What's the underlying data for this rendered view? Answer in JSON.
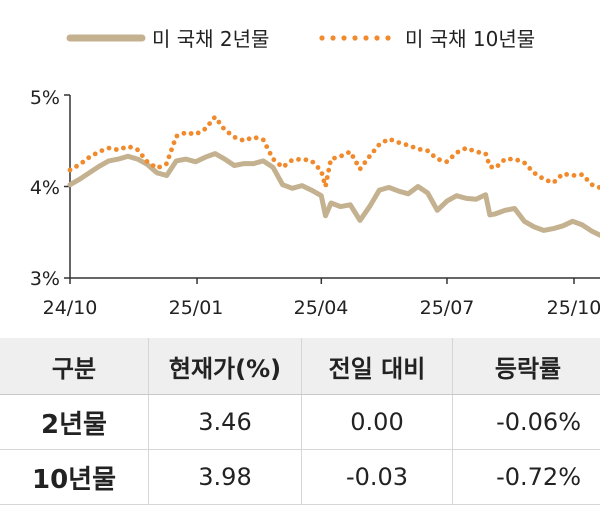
{
  "chart_data": {
    "type": "line",
    "title": "",
    "xlabel": "",
    "ylabel": "",
    "ylim": [
      3,
      5
    ],
    "y_ticks": [
      "3%",
      "4%",
      "5%"
    ],
    "x_ticks": [
      "24/10",
      "25/01",
      "25/04",
      "25/07",
      "25/10"
    ],
    "legend_position": "top",
    "series": [
      {
        "name": "미 국채 2년물",
        "style": "solid",
        "color": "#c4b190",
        "x": [
          "2024-10-01",
          "2024-10-08",
          "2024-10-15",
          "2024-10-22",
          "2024-10-29",
          "2024-11-05",
          "2024-11-12",
          "2024-11-19",
          "2024-11-26",
          "2024-12-03",
          "2024-12-10",
          "2024-12-17",
          "2024-12-24",
          "2024-12-31",
          "2025-01-07",
          "2025-01-14",
          "2025-01-21",
          "2025-01-28",
          "2025-02-04",
          "2025-02-11",
          "2025-02-18",
          "2025-02-25",
          "2025-03-04",
          "2025-03-11",
          "2025-03-18",
          "2025-03-25",
          "2025-04-01",
          "2025-04-04",
          "2025-04-08",
          "2025-04-15",
          "2025-04-22",
          "2025-04-29",
          "2025-05-06",
          "2025-05-13",
          "2025-05-20",
          "2025-05-27",
          "2025-06-03",
          "2025-06-10",
          "2025-06-17",
          "2025-06-24",
          "2025-07-01",
          "2025-07-08",
          "2025-07-15",
          "2025-07-22",
          "2025-07-29",
          "2025-08-01",
          "2025-08-05",
          "2025-08-12",
          "2025-08-19",
          "2025-08-26",
          "2025-09-02",
          "2025-09-09",
          "2025-09-16",
          "2025-09-23",
          "2025-09-30",
          "2025-10-07",
          "2025-10-14",
          "2025-10-21"
        ],
        "values": [
          4.02,
          4.08,
          4.15,
          4.22,
          4.28,
          4.3,
          4.33,
          4.3,
          4.24,
          4.15,
          4.12,
          4.28,
          4.3,
          4.27,
          4.32,
          4.36,
          4.3,
          4.23,
          4.25,
          4.25,
          4.28,
          4.21,
          4.02,
          3.98,
          4.01,
          3.96,
          3.9,
          3.68,
          3.82,
          3.78,
          3.8,
          3.63,
          3.78,
          3.96,
          3.99,
          3.95,
          3.92,
          4.0,
          3.93,
          3.74,
          3.84,
          3.9,
          3.87,
          3.86,
          3.91,
          3.69,
          3.7,
          3.74,
          3.76,
          3.62,
          3.56,
          3.52,
          3.54,
          3.57,
          3.62,
          3.58,
          3.51,
          3.46
        ]
      },
      {
        "name": "미 국채 10년물",
        "style": "dotted",
        "color": "#f08a2c",
        "x": [
          "2024-10-01",
          "2024-10-08",
          "2024-10-15",
          "2024-10-22",
          "2024-10-29",
          "2024-11-05",
          "2024-11-12",
          "2024-11-19",
          "2024-11-26",
          "2024-12-03",
          "2024-12-10",
          "2024-12-17",
          "2024-12-24",
          "2024-12-31",
          "2025-01-07",
          "2025-01-14",
          "2025-01-21",
          "2025-01-28",
          "2025-02-04",
          "2025-02-11",
          "2025-02-18",
          "2025-02-25",
          "2025-03-04",
          "2025-03-11",
          "2025-03-18",
          "2025-03-25",
          "2025-04-01",
          "2025-04-04",
          "2025-04-08",
          "2025-04-15",
          "2025-04-22",
          "2025-04-29",
          "2025-05-06",
          "2025-05-13",
          "2025-05-20",
          "2025-05-27",
          "2025-06-03",
          "2025-06-10",
          "2025-06-17",
          "2025-06-24",
          "2025-07-01",
          "2025-07-08",
          "2025-07-15",
          "2025-07-22",
          "2025-07-29",
          "2025-08-01",
          "2025-08-05",
          "2025-08-12",
          "2025-08-19",
          "2025-08-26",
          "2025-09-02",
          "2025-09-09",
          "2025-09-16",
          "2025-09-23",
          "2025-09-30",
          "2025-10-07",
          "2025-10-14",
          "2025-10-21"
        ],
        "values": [
          4.18,
          4.24,
          4.32,
          4.38,
          4.42,
          4.4,
          4.44,
          4.4,
          4.27,
          4.2,
          4.25,
          4.55,
          4.59,
          4.57,
          4.63,
          4.76,
          4.62,
          4.54,
          4.5,
          4.54,
          4.51,
          4.3,
          4.21,
          4.29,
          4.3,
          4.28,
          4.17,
          4.0,
          4.3,
          4.33,
          4.38,
          4.19,
          4.33,
          4.46,
          4.52,
          4.48,
          4.45,
          4.41,
          4.39,
          4.3,
          4.27,
          4.37,
          4.42,
          4.38,
          4.36,
          4.22,
          4.2,
          4.3,
          4.3,
          4.26,
          4.15,
          4.08,
          4.04,
          4.14,
          4.12,
          4.13,
          4.02,
          3.98
        ]
      }
    ]
  },
  "table": {
    "headers": [
      "구분",
      "현재가(%)",
      "전일 대비",
      "등락률"
    ],
    "rows": [
      {
        "label": "2년물",
        "price": "3.46",
        "change": "0.00",
        "rate": "-0.06%"
      },
      {
        "label": "10년물",
        "price": "3.98",
        "change": "-0.03",
        "rate": "-0.72%"
      }
    ]
  }
}
